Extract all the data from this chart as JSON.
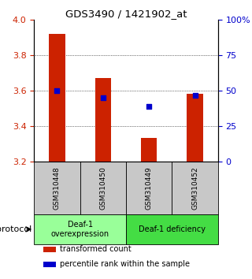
{
  "title": "GDS3490 / 1421902_at",
  "samples": [
    "GSM310448",
    "GSM310450",
    "GSM310449",
    "GSM310452"
  ],
  "bar_values": [
    3.92,
    3.67,
    3.33,
    3.58
  ],
  "bar_bottom": 3.2,
  "blue_dot_values": [
    3.6,
    3.56,
    3.51,
    3.57
  ],
  "ylim": [
    3.2,
    4.0
  ],
  "yticks_left": [
    3.2,
    3.4,
    3.6,
    3.8,
    4.0
  ],
  "yticks_right": [
    0,
    25,
    50,
    75,
    100
  ],
  "ytick_labels_right": [
    "0",
    "25",
    "50",
    "75",
    "100%"
  ],
  "bar_color": "#cc2200",
  "dot_color": "#0000cc",
  "groups": [
    {
      "label": "Deaf-1\noverexpression",
      "samples": [
        0,
        1
      ],
      "color": "#99ff99"
    },
    {
      "label": "Deaf-1 deficiency",
      "samples": [
        2,
        3
      ],
      "color": "#44dd44"
    }
  ],
  "protocol_label": "protocol",
  "sample_bg_color": "#c8c8c8",
  "legend_items": [
    {
      "color": "#cc2200",
      "label": "transformed count"
    },
    {
      "color": "#0000cc",
      "label": "percentile rank within the sample"
    }
  ],
  "bar_width": 0.35,
  "dot_size": 18
}
